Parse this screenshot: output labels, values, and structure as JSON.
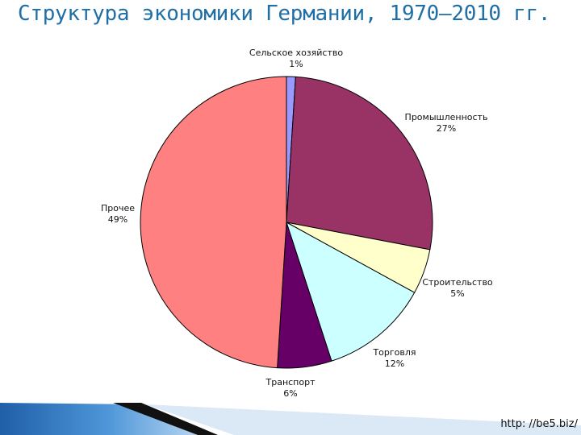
{
  "title": "Структура экономики Германии, 1970–2010 гг.",
  "footer": {
    "url": "http: //be5.biz/"
  },
  "chart_data": {
    "type": "pie",
    "title": "Структура экономики Германии, 1970–2010 гг.",
    "slices": [
      {
        "name": "Сельское хозяйство",
        "value": 1,
        "label": "1%",
        "color": "#9999ff"
      },
      {
        "name": "Промышленность",
        "value": 27,
        "label": "27%",
        "color": "#993366"
      },
      {
        "name": "Строительство",
        "value": 5,
        "label": "5%",
        "color": "#ffffcc"
      },
      {
        "name": "Торговля",
        "value": 12,
        "label": "12%",
        "color": "#ccffff"
      },
      {
        "name": "Транспорт",
        "value": 6,
        "label": "6%",
        "color": "#660066"
      },
      {
        "name": "Прочее",
        "value": 49,
        "label": "49%",
        "color": "#ff8080"
      }
    ]
  }
}
